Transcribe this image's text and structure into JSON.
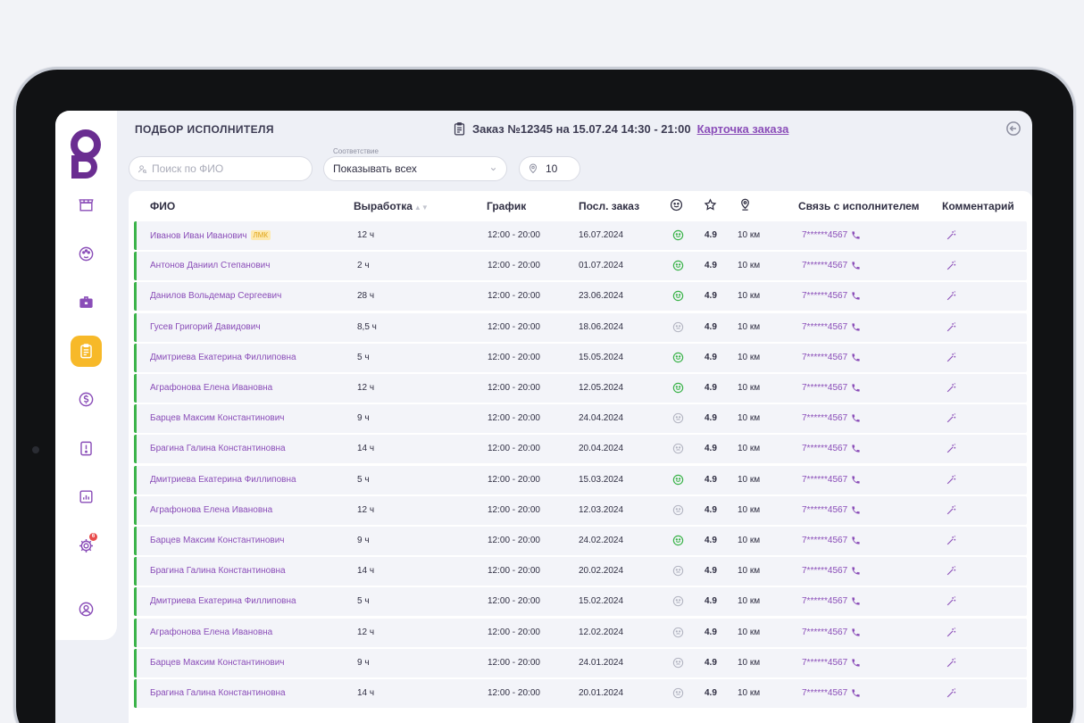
{
  "header": {
    "title": "ПОДБОР ИСПОЛНИТЕЛЯ",
    "order": "Заказ №12345 на 15.07.24 14:30 - 21:00",
    "order_link": "Карточка заказа"
  },
  "filters": {
    "search_placeholder": "Поиск по ФИО",
    "match_label": "Соответствие",
    "match_value": "Показывать всех",
    "radius_value": "10"
  },
  "sidebar": {
    "settings_badge": "6",
    "active_item": "orders"
  },
  "table": {
    "columns": {
      "name": "ФИО",
      "hours": "Выработка",
      "schedule": "График",
      "last_order": "Посл. заказ",
      "contact": "Связь с исполнителем",
      "comment": "Комментарий"
    },
    "rows": [
      {
        "name": "Иванов Иван Иванович",
        "tag": "ЛМК",
        "hours": "12 ч",
        "schedule": "12:00 - 20:00",
        "last_order": "16.07.2024",
        "mood": "happy",
        "rating": "4.9",
        "distance": "10 км",
        "phone": "7******4567"
      },
      {
        "name": "Антонов Даниил Степанович",
        "tag": "",
        "hours": "2 ч",
        "schedule": "12:00 - 20:00",
        "last_order": "01.07.2024",
        "mood": "happy",
        "rating": "4.9",
        "distance": "10 км",
        "phone": "7******4567"
      },
      {
        "name": "Данилов Вольдемар Сергеевич",
        "tag": "",
        "hours": "28 ч",
        "schedule": "12:00 - 20:00",
        "last_order": "23.06.2024",
        "mood": "happy",
        "rating": "4.9",
        "distance": "10 км",
        "phone": "7******4567"
      },
      {
        "name": "Гусев Григорий Давидович",
        "tag": "",
        "hours": "8,5 ч",
        "schedule": "12:00 - 20:00",
        "last_order": "18.06.2024",
        "mood": "neutral",
        "rating": "4.9",
        "distance": "10 км",
        "phone": "7******4567"
      },
      {
        "name": "Дмитриева Екатерина Филлиповна",
        "tag": "",
        "hours": "5 ч",
        "schedule": "12:00 - 20:00",
        "last_order": "15.05.2024",
        "mood": "happy",
        "rating": "4.9",
        "distance": "10 км",
        "phone": "7******4567"
      },
      {
        "name": "Аграфонова Елена Ивановна",
        "tag": "",
        "hours": "12 ч",
        "schedule": "12:00 - 20:00",
        "last_order": "12.05.2024",
        "mood": "happy",
        "rating": "4.9",
        "distance": "10 км",
        "phone": "7******4567"
      },
      {
        "name": "Барцев Максим Константинович",
        "tag": "",
        "hours": "9 ч",
        "schedule": "12:00 - 20:00",
        "last_order": "24.04.2024",
        "mood": "neutral",
        "rating": "4.9",
        "distance": "10 км",
        "phone": "7******4567"
      },
      {
        "name": "Брагина Галина Константиновна",
        "tag": "",
        "hours": "14 ч",
        "schedule": "12:00 - 20:00",
        "last_order": "20.04.2024",
        "mood": "neutral",
        "rating": "4.9",
        "distance": "10 км",
        "phone": "7******4567"
      },
      {
        "name": "Дмитриева Екатерина Филлиповна",
        "tag": "",
        "hours": "5 ч",
        "schedule": "12:00 - 20:00",
        "last_order": "15.03.2024",
        "mood": "happy",
        "rating": "4.9",
        "distance": "10 км",
        "phone": "7******4567"
      },
      {
        "name": "Аграфонова Елена Ивановна",
        "tag": "",
        "hours": "12 ч",
        "schedule": "12:00 - 20:00",
        "last_order": "12.03.2024",
        "mood": "neutral",
        "rating": "4.9",
        "distance": "10 км",
        "phone": "7******4567"
      },
      {
        "name": "Барцев Максим Константинович",
        "tag": "",
        "hours": "9 ч",
        "schedule": "12:00 - 20:00",
        "last_order": "24.02.2024",
        "mood": "happy",
        "rating": "4.9",
        "distance": "10 км",
        "phone": "7******4567"
      },
      {
        "name": "Брагина Галина Константиновна",
        "tag": "",
        "hours": "14 ч",
        "schedule": "12:00 - 20:00",
        "last_order": "20.02.2024",
        "mood": "neutral",
        "rating": "4.9",
        "distance": "10 км",
        "phone": "7******4567"
      },
      {
        "name": "Дмитриева Екатерина Филлиповна",
        "tag": "",
        "hours": "5 ч",
        "schedule": "12:00 - 20:00",
        "last_order": "15.02.2024",
        "mood": "neutral",
        "rating": "4.9",
        "distance": "10 км",
        "phone": "7******4567"
      },
      {
        "name": "Аграфонова Елена Ивановна",
        "tag": "",
        "hours": "12 ч",
        "schedule": "12:00 - 20:00",
        "last_order": "12.02.2024",
        "mood": "neutral",
        "rating": "4.9",
        "distance": "10 км",
        "phone": "7******4567"
      },
      {
        "name": "Барцев Максим Константинович",
        "tag": "",
        "hours": "9 ч",
        "schedule": "12:00 - 20:00",
        "last_order": "24.01.2024",
        "mood": "neutral",
        "rating": "4.9",
        "distance": "10 км",
        "phone": "7******4567"
      },
      {
        "name": "Брагина Галина Константиновна",
        "tag": "",
        "hours": "14 ч",
        "schedule": "12:00 - 20:00",
        "last_order": "20.01.2024",
        "mood": "neutral",
        "rating": "4.9",
        "distance": "10 км",
        "phone": "7******4567"
      }
    ]
  },
  "colors": {
    "accent": "#8a4db8",
    "active_nav": "#f7b929",
    "row_marker": "#3bb34a",
    "mood_happy": "#3bb34a",
    "mood_neutral": "#b3b5c2"
  }
}
